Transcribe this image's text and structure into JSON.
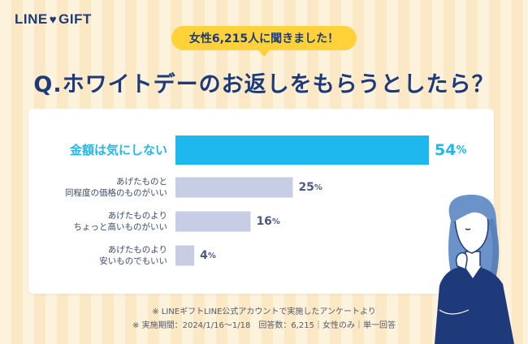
{
  "logo": {
    "left": "LINE",
    "heart_icon": "heart-icon",
    "right": "GIFT"
  },
  "badge": "女性6,215人に聞きました！",
  "question": "Q.ホワイトデーのお返しをもらうとしたら？",
  "chart_data": {
    "type": "bar",
    "orientation": "horizontal",
    "unit": "%",
    "categories": [
      [
        "金額は気にしない"
      ],
      [
        "あげたものと",
        "同程度の価格のものがいい"
      ],
      [
        "あげたものより",
        "ちょっと高いものがいい"
      ],
      [
        "あげたものより",
        "安いものでもいい"
      ]
    ],
    "values": [
      54,
      25,
      16,
      4
    ],
    "value_labels": [
      "54",
      "25",
      "16",
      "4"
    ],
    "xlim": [
      0,
      54
    ],
    "colors": {
      "highlight": "#1fb8ee",
      "default": "#c7cde4",
      "highlight_text": "#1fb8ee",
      "default_text": "#4a5a85"
    }
  },
  "footnotes": [
    "※ LINEギフトLINE公式アカウントで実施したアンケートより",
    "※ 実施期間：2024/1/16～1/18　回答数：6,215｜女性のみ｜単一回答"
  ]
}
